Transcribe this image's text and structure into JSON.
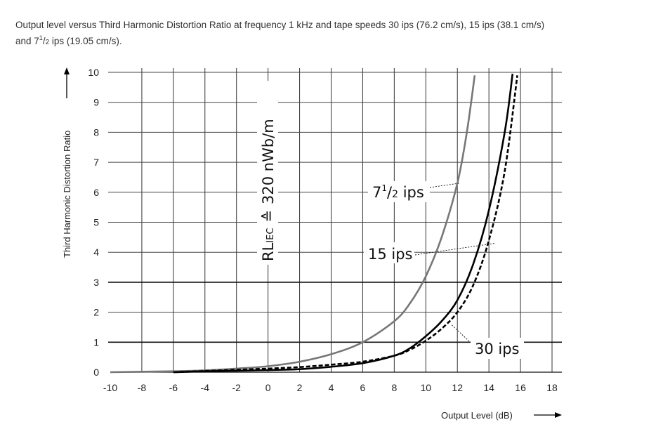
{
  "caption": {
    "line1": "Output level versus Third Harmonic Distortion Ratio at frequency 1 kHz and tape speeds 30 ips (76.2 cm/s), 15 ips (38.1 cm/s)",
    "line2_prefix": "and 7",
    "line2_frac_num": "1",
    "line2_frac_sep": "/",
    "line2_frac_den": "2",
    "line2_suffix": " ips (19.05 cm/s)."
  },
  "chart_data": {
    "type": "line",
    "xlabel": "Output Level (dB)",
    "ylabel": "Third Harmonic Distortion Ratio",
    "xlim": [
      -10,
      18
    ],
    "ylim": [
      0,
      10
    ],
    "x_ticks": [
      -10,
      -8,
      -6,
      -4,
      -2,
      0,
      2,
      4,
      6,
      8,
      10,
      12,
      14,
      16,
      18
    ],
    "y_ticks": [
      0,
      1,
      2,
      3,
      4,
      5,
      6,
      7,
      8,
      9,
      10
    ],
    "grid": true,
    "annotation_rl": {
      "main": "RL",
      "sub": "IEC",
      "sym": "≙",
      "value": "320 nWb/m"
    },
    "series": [
      {
        "name": "7½ ips",
        "label_main": "7",
        "label_num": "1",
        "label_sep": "/",
        "label_den": "2",
        "label_unit": " ips",
        "style": "solid",
        "color": "#777777",
        "points": [
          [
            -10,
            0
          ],
          [
            -6,
            0.03
          ],
          [
            -4,
            0.06
          ],
          [
            -2,
            0.12
          ],
          [
            0,
            0.2
          ],
          [
            2,
            0.35
          ],
          [
            4,
            0.6
          ],
          [
            6,
            1.0
          ],
          [
            8,
            1.7
          ],
          [
            9,
            2.3
          ],
          [
            10,
            3.2
          ],
          [
            11,
            4.5
          ],
          [
            12,
            6.3
          ],
          [
            12.6,
            8.0
          ],
          [
            13.1,
            9.9
          ]
        ]
      },
      {
        "name": "15 ips",
        "label_main": "15 ips",
        "style": "solid",
        "color": "#000000",
        "points": [
          [
            -6,
            0.0
          ],
          [
            -4,
            0.03
          ],
          [
            -2,
            0.05
          ],
          [
            0,
            0.07
          ],
          [
            2,
            0.1
          ],
          [
            4,
            0.18
          ],
          [
            6,
            0.3
          ],
          [
            8,
            0.55
          ],
          [
            9,
            0.8
          ],
          [
            10,
            1.2
          ],
          [
            11,
            1.7
          ],
          [
            12,
            2.4
          ],
          [
            13,
            3.6
          ],
          [
            14,
            5.4
          ],
          [
            15,
            8.0
          ],
          [
            15.5,
            9.95
          ]
        ]
      },
      {
        "name": "30 ips",
        "label_main": "30 ips",
        "style": "dashed",
        "color": "#000000",
        "points": [
          [
            -6,
            0.0
          ],
          [
            -4,
            0.04
          ],
          [
            -2,
            0.08
          ],
          [
            0,
            0.12
          ],
          [
            2,
            0.17
          ],
          [
            4,
            0.25
          ],
          [
            6,
            0.35
          ],
          [
            8,
            0.55
          ],
          [
            9,
            0.75
          ],
          [
            10,
            1.05
          ],
          [
            11,
            1.45
          ],
          [
            12,
            2.0
          ],
          [
            13,
            2.9
          ],
          [
            14,
            4.4
          ],
          [
            15,
            6.7
          ],
          [
            15.8,
            9.9
          ]
        ]
      }
    ]
  }
}
